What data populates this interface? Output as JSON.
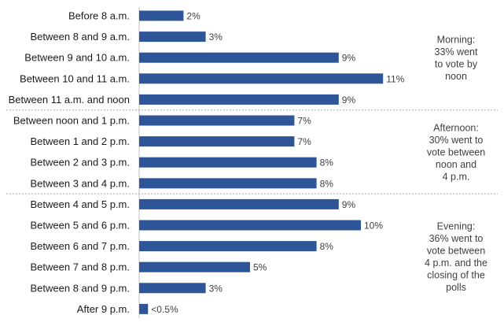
{
  "chart_data": {
    "type": "bar",
    "orientation": "horizontal",
    "categories": [
      "Before 8 a.m.",
      "Between 8 and 9 a.m.",
      "Between 9 and 10 a.m.",
      "Between 10 and 11 a.m.",
      "Between 11 a.m. and noon",
      "Between noon and 1 p.m.",
      "Between 1 and 2 p.m.",
      "Between 2 and 3 p.m.",
      "Between 3 and 4 p.m.",
      "Between 4 and 5 p.m.",
      "Between 5 and 6 p.m.",
      "Between 6 and 7 p.m.",
      "Between 7 and 8 p.m.",
      "Between 8 and 9 p.m.",
      "After 9 p.m."
    ],
    "values": [
      2,
      3,
      9,
      11,
      9,
      7,
      7,
      8,
      8,
      9,
      10,
      8,
      5,
      3,
      0.4
    ],
    "value_labels": [
      "2%",
      "3%",
      "9%",
      "11%",
      "9%",
      "7%",
      "7%",
      "8%",
      "8%",
      "9%",
      "10%",
      "8%",
      "5%",
      "3%",
      "<0.5%"
    ],
    "xlim": [
      0,
      11
    ],
    "grid": false,
    "bar_color": "#2e5597",
    "groups": [
      {
        "start": 0,
        "end": 4,
        "lines": [
          "Morning:",
          "33% went",
          "to vote by",
          "noon"
        ]
      },
      {
        "start": 5,
        "end": 8,
        "lines": [
          "Afternoon:",
          "30% went to",
          "vote between",
          "noon and",
          "4 p.m."
        ]
      },
      {
        "start": 9,
        "end": 14,
        "lines": [
          "Evening:",
          "36% went to",
          "vote between",
          "4 p.m. and the",
          "closing of the",
          "polls"
        ]
      }
    ]
  }
}
